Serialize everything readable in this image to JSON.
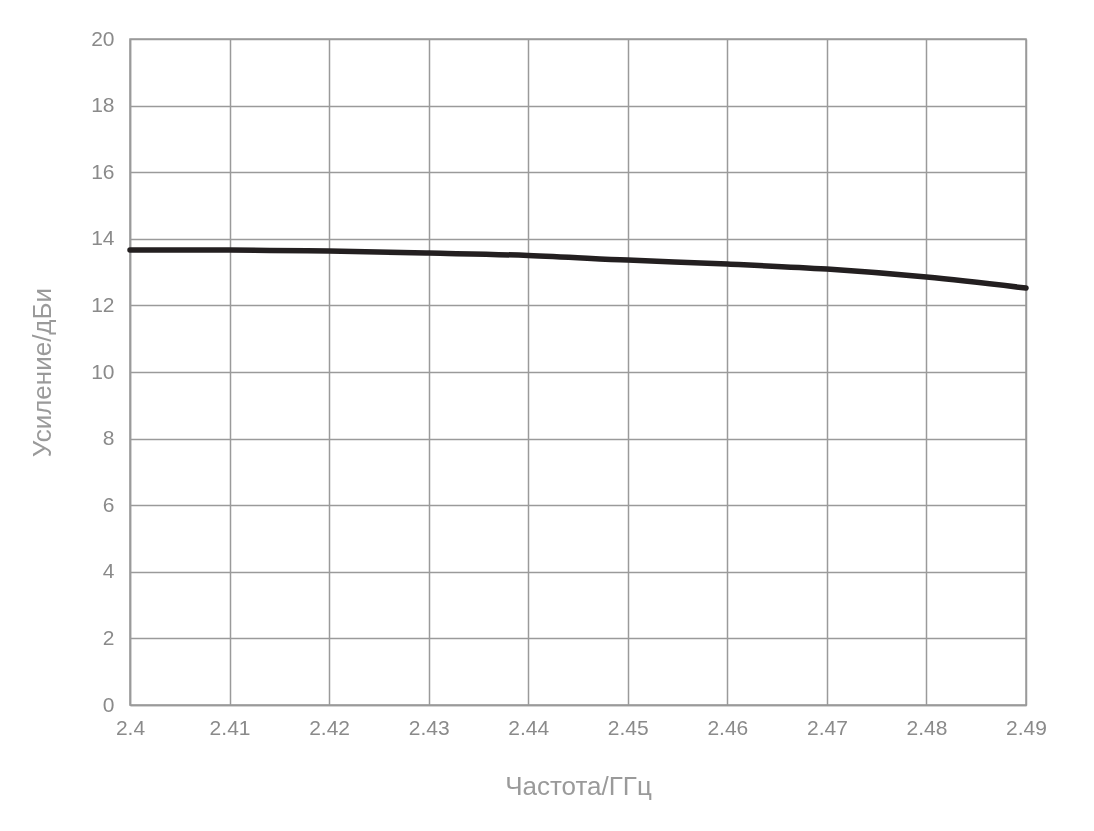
{
  "chart_data": {
    "type": "line",
    "xlabel": "Частота/ГГц",
    "ylabel": "Усиление/дБи",
    "x": [
      2.4,
      2.41,
      2.42,
      2.43,
      2.44,
      2.45,
      2.46,
      2.47,
      2.48,
      2.49
    ],
    "series": [
      {
        "color": "#231f20",
        "values": [
          13.66,
          13.66,
          13.63,
          13.57,
          13.5,
          13.36,
          13.24,
          13.09,
          12.85,
          12.52
        ]
      }
    ],
    "xlim": [
      2.4,
      2.49
    ],
    "xticks": [
      2.4,
      2.41,
      2.42,
      2.43,
      2.44,
      2.45,
      2.46,
      2.47,
      2.48,
      2.49
    ],
    "ylim": [
      0,
      20
    ],
    "yticks": [
      0,
      2,
      4,
      6,
      8,
      10,
      12,
      14,
      16,
      18,
      20
    ],
    "grid": true,
    "marker": "none",
    "line_style": "solid"
  }
}
